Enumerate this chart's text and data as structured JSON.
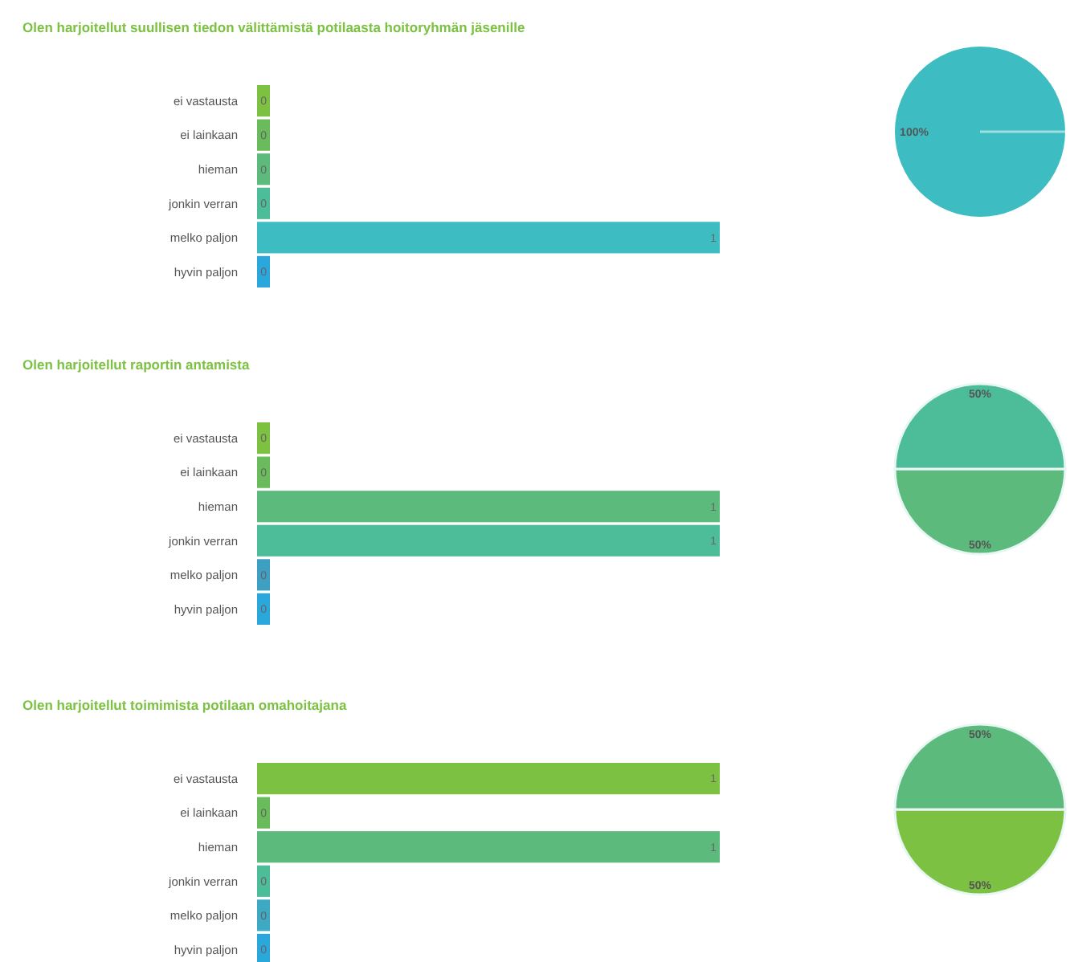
{
  "chart_data": [
    {
      "type": "bar",
      "orientation": "horizontal",
      "title": "Olen harjoitellut suullisen tiedon välittämistä potilaasta hoitoryhmän jäsenille",
      "categories": [
        "ei vastausta",
        "ei lainkaan",
        "hieman",
        "jonkin verran",
        "melko paljon",
        "hyvin paljon"
      ],
      "values": [
        0,
        0,
        0,
        0,
        1,
        0
      ],
      "colors": [
        "#7cc142",
        "#6abb5c",
        "#5cbb7c",
        "#4dbc99",
        "#3dbdc2",
        "#2aa8dc"
      ],
      "data_labels": true
    },
    {
      "type": "pie",
      "categories": [
        null
      ],
      "values": [
        100
      ],
      "colors": [
        "#3dbdc2"
      ],
      "value_labels": [
        "100%"
      ]
    },
    {
      "type": "bar",
      "orientation": "horizontal",
      "title": "Olen harjoitellut raportin antamista",
      "categories": [
        "ei vastausta",
        "ei lainkaan",
        "hieman",
        "jonkin verran",
        "melko paljon",
        "hyvin paljon"
      ],
      "values": [
        0,
        0,
        1,
        1,
        0,
        0
      ],
      "colors": [
        "#7cc142",
        "#6abb5c",
        "#5cbb7c",
        "#4dbc99",
        "#3d9fc2",
        "#2aa8dc"
      ],
      "data_labels": true
    },
    {
      "type": "pie",
      "categories": [
        null,
        null
      ],
      "values": [
        50,
        50
      ],
      "colors": [
        "#5cbb7c",
        "#4dbc99"
      ],
      "value_labels": [
        "50%",
        "50%"
      ]
    },
    {
      "type": "bar",
      "orientation": "horizontal",
      "title": "Olen harjoitellut toimimista potilaan omahoitajana",
      "categories": [
        "ei vastausta",
        "ei lainkaan",
        "hieman",
        "jonkin verran",
        "melko paljon",
        "hyvin paljon"
      ],
      "values": [
        1,
        0,
        1,
        0,
        0,
        0
      ],
      "colors": [
        "#7cc142",
        "#6abb5c",
        "#5cbb7c",
        "#4dbc99",
        "#3da9c2",
        "#2aa8dc"
      ],
      "data_labels": true
    },
    {
      "type": "pie",
      "categories": [
        null,
        null
      ],
      "values": [
        50,
        50
      ],
      "colors": [
        "#7cc142",
        "#5cbb7c"
      ],
      "value_labels": [
        "50%",
        "50%"
      ]
    }
  ]
}
